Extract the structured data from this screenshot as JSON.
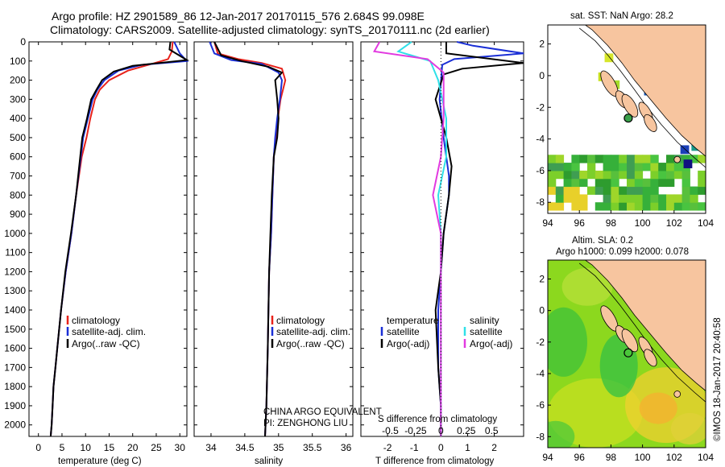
{
  "header": {
    "line1": "Argo profile: HZ 2901589_86 12-Jan-2017 20170115_576 2.684S 99.098E",
    "line2": "Climatology: CARS2009. Satellite-adjusted climatology: synTS_20170111.nc (2d earlier)"
  },
  "colors": {
    "climatology": "#e8221b",
    "satellite": "#1a2fd6",
    "argo": "#000000",
    "salinity_sat": "#2fe0e8",
    "salinity_argo": "#e23ae0",
    "land": "#f7c59f",
    "box": "#000000"
  },
  "chart_data": [
    {
      "type": "line",
      "id": "temperature",
      "xlabel": "temperature (deg C)",
      "ylabel": "",
      "xlim": [
        -2,
        31.5
      ],
      "ylim": [
        2060,
        0
      ],
      "xticks": [
        0,
        5,
        10,
        15,
        20,
        25,
        30
      ],
      "yticks": [
        0,
        100,
        200,
        300,
        400,
        500,
        600,
        700,
        800,
        900,
        1000,
        1100,
        1200,
        1300,
        1400,
        1500,
        1600,
        1700,
        1800,
        1900,
        2000
      ],
      "legend": [
        "climatology",
        "satellite-adj. clim.",
        "Argo(..raw -QC)"
      ],
      "series": [
        {
          "name": "climatology",
          "color": "#e8221b",
          "x": [
            28.5,
            28.3,
            27.5,
            24,
            19,
            15,
            13,
            12,
            11,
            10.2,
            9.2,
            8,
            7,
            5.8,
            4.8,
            4,
            3.6,
            3.2,
            3,
            2.8,
            2.6
          ],
          "y": [
            0,
            50,
            90,
            115,
            150,
            200,
            250,
            300,
            400,
            500,
            600,
            800,
            1000,
            1200,
            1400,
            1600,
            1700,
            1800,
            1900,
            2000,
            2060
          ]
        },
        {
          "name": "satellite-adj. clim.",
          "color": "#1a2fd6",
          "x": [
            28.8,
            30,
            31.5,
            22,
            17,
            14,
            12.5,
            11.5,
            10.5,
            9.5,
            8,
            7,
            5.8,
            4.8,
            4,
            3.6,
            3.2,
            3,
            2.8,
            2.6
          ],
          "y": [
            0,
            60,
            100,
            120,
            150,
            200,
            250,
            300,
            400,
            500,
            800,
            1000,
            1200,
            1400,
            1600,
            1700,
            1800,
            1900,
            2000,
            2060
          ]
        },
        {
          "name": "Argo(..raw -QC)",
          "color": "#000000",
          "x": [
            28,
            27.8,
            31.5,
            20,
            16,
            13.5,
            12.3,
            11.2,
            10.3,
            9.3,
            8,
            6.9,
            5.7,
            4.8,
            4,
            3.6,
            3.2,
            3,
            2.8,
            2.6
          ],
          "y": [
            0,
            40,
            95,
            125,
            155,
            200,
            250,
            300,
            400,
            500,
            800,
            1000,
            1200,
            1400,
            1600,
            1700,
            1800,
            1900,
            2000,
            2060
          ]
        }
      ]
    },
    {
      "type": "line",
      "id": "salinity",
      "xlabel": "salinity",
      "xlim": [
        33.75,
        36.1
      ],
      "ylim": [
        2060,
        0
      ],
      "xticks": [
        34,
        34.5,
        35,
        35.5,
        36
      ],
      "legend": [
        "climatology",
        "satellite-adj. clim.",
        "Argo(..raw -QC)"
      ],
      "series": [
        {
          "name": "climatology",
          "color": "#e8221b",
          "x": [
            34.05,
            34.1,
            34.4,
            34.75,
            35.05,
            35.1,
            35.03,
            34.99,
            34.96,
            34.93,
            34.91,
            34.89,
            34.86,
            34.84,
            34.82,
            34.8
          ],
          "y": [
            0,
            60,
            90,
            110,
            140,
            200,
            300,
            400,
            500,
            600,
            800,
            1000,
            1200,
            1600,
            1900,
            2060
          ]
        },
        {
          "name": "satellite-adj. clim.",
          "color": "#1a2fd6",
          "x": [
            33.98,
            34.05,
            34.3,
            34.75,
            35.0,
            35.05,
            35.02,
            34.98,
            34.95,
            34.93,
            34.91,
            34.89,
            34.86,
            34.84,
            34.82,
            34.8
          ],
          "y": [
            0,
            60,
            95,
            115,
            160,
            200,
            300,
            400,
            500,
            600,
            800,
            1000,
            1200,
            1600,
            1900,
            2060
          ]
        },
        {
          "name": "Argo(..raw -QC)",
          "color": "#000000",
          "x": [
            34.05,
            34.15,
            34.45,
            34.85,
            35.05,
            34.95,
            34.98,
            35.0,
            34.98,
            34.93,
            34.9,
            34.88,
            34.86,
            34.84,
            34.82,
            34.8
          ],
          "y": [
            0,
            70,
            100,
            130,
            160,
            200,
            300,
            400,
            500,
            600,
            800,
            1000,
            1200,
            1600,
            1900,
            2060
          ]
        }
      ]
    },
    {
      "type": "line",
      "id": "difference",
      "xlabel": "T difference from climatology",
      "xlabel_top": "S difference from climatology",
      "xlim": [
        -3,
        3.1
      ],
      "ylim": [
        2060,
        0
      ],
      "xticks_T": [
        -2,
        -1,
        0,
        1,
        2
      ],
      "xticks_S_labels": [
        "-0.5",
        "-0.25",
        "0",
        "0.25",
        "0.5"
      ],
      "xticks_S_at_T": [
        -1.9,
        -0.95,
        0,
        0.95,
        1.9
      ],
      "legend_titles": [
        "temperature",
        "salinity"
      ],
      "legend": [
        "satellite",
        "Argo(-adj)",
        "satellite",
        "Argo(-adj)"
      ],
      "series": [
        {
          "name": "temperature satellite",
          "color": "#1a2fd6",
          "x": [
            0.6,
            1.2,
            3.1,
            0.5,
            0.05,
            -0.05,
            0.1,
            0.3,
            0.3,
            0.1,
            0,
            -0.1,
            -0.1,
            0,
            0
          ],
          "y": [
            0,
            20,
            60,
            90,
            120,
            300,
            500,
            700,
            800,
            1000,
            1200,
            1400,
            1700,
            1900,
            2060
          ]
        },
        {
          "name": "temperature Argo(-adj)",
          "color": "#000000",
          "x": [
            0.2,
            0.2,
            3.1,
            0.8,
            0.1,
            -0.2,
            0.2,
            0.4,
            0.3,
            0.1,
            0,
            -0.2,
            -0.1,
            0,
            0
          ],
          "y": [
            0,
            60,
            110,
            140,
            170,
            300,
            500,
            650,
            800,
            1000,
            1200,
            1400,
            1700,
            1900,
            2060
          ]
        },
        {
          "name": "salinity satellite",
          "color": "#2fe0e8",
          "x": [
            -1.1,
            -1.6,
            -0.4,
            -0.1,
            0.2,
            0.2,
            -0.1,
            0.0,
            0.0,
            0.0,
            0.0
          ],
          "y": [
            0,
            50,
            100,
            200,
            400,
            600,
            800,
            1000,
            1400,
            1800,
            2060
          ]
        },
        {
          "name": "salinity Argo(-adj)",
          "color": "#e23ae0",
          "x": [
            -2.3,
            -2.5,
            -0.5,
            0.1,
            0.1,
            0.0,
            -0.3,
            0.0,
            0.0,
            0.0,
            0.0
          ],
          "y": [
            0,
            50,
            90,
            160,
            400,
            600,
            800,
            1000,
            1400,
            1800,
            2060
          ]
        }
      ]
    },
    {
      "type": "heatmap",
      "id": "sst_map",
      "title": "sat. SST: NaN Argo: 28.2",
      "xlim": [
        94,
        104
      ],
      "ylim": [
        -8.7,
        3.2
      ],
      "xticks": [
        94,
        96,
        98,
        100,
        102,
        104
      ],
      "yticks": [
        -8,
        -6,
        -4,
        -2,
        0,
        2
      ],
      "argo_position": [
        99.098,
        -2.684
      ]
    },
    {
      "type": "heatmap",
      "id": "sla_map",
      "title_line1": "Altim. SLA: 0.2",
      "title_line2": "Argo h1000: 0.099 h2000: 0.078",
      "xlim": [
        94,
        104
      ],
      "ylim": [
        -8.7,
        3.2
      ],
      "xticks": [
        94,
        96,
        98,
        100,
        102,
        104
      ],
      "yticks": [
        -8,
        -6,
        -4,
        -2,
        0,
        2
      ],
      "argo_position": [
        99.098,
        -2.684
      ]
    }
  ],
  "annotations": {
    "source_line1": "CHINA ARGO EQUIVALENT",
    "source_line2": "PI: ZENGHONG LIU",
    "credit": "©IMOS 18-Jan-2017 20:40:58"
  }
}
